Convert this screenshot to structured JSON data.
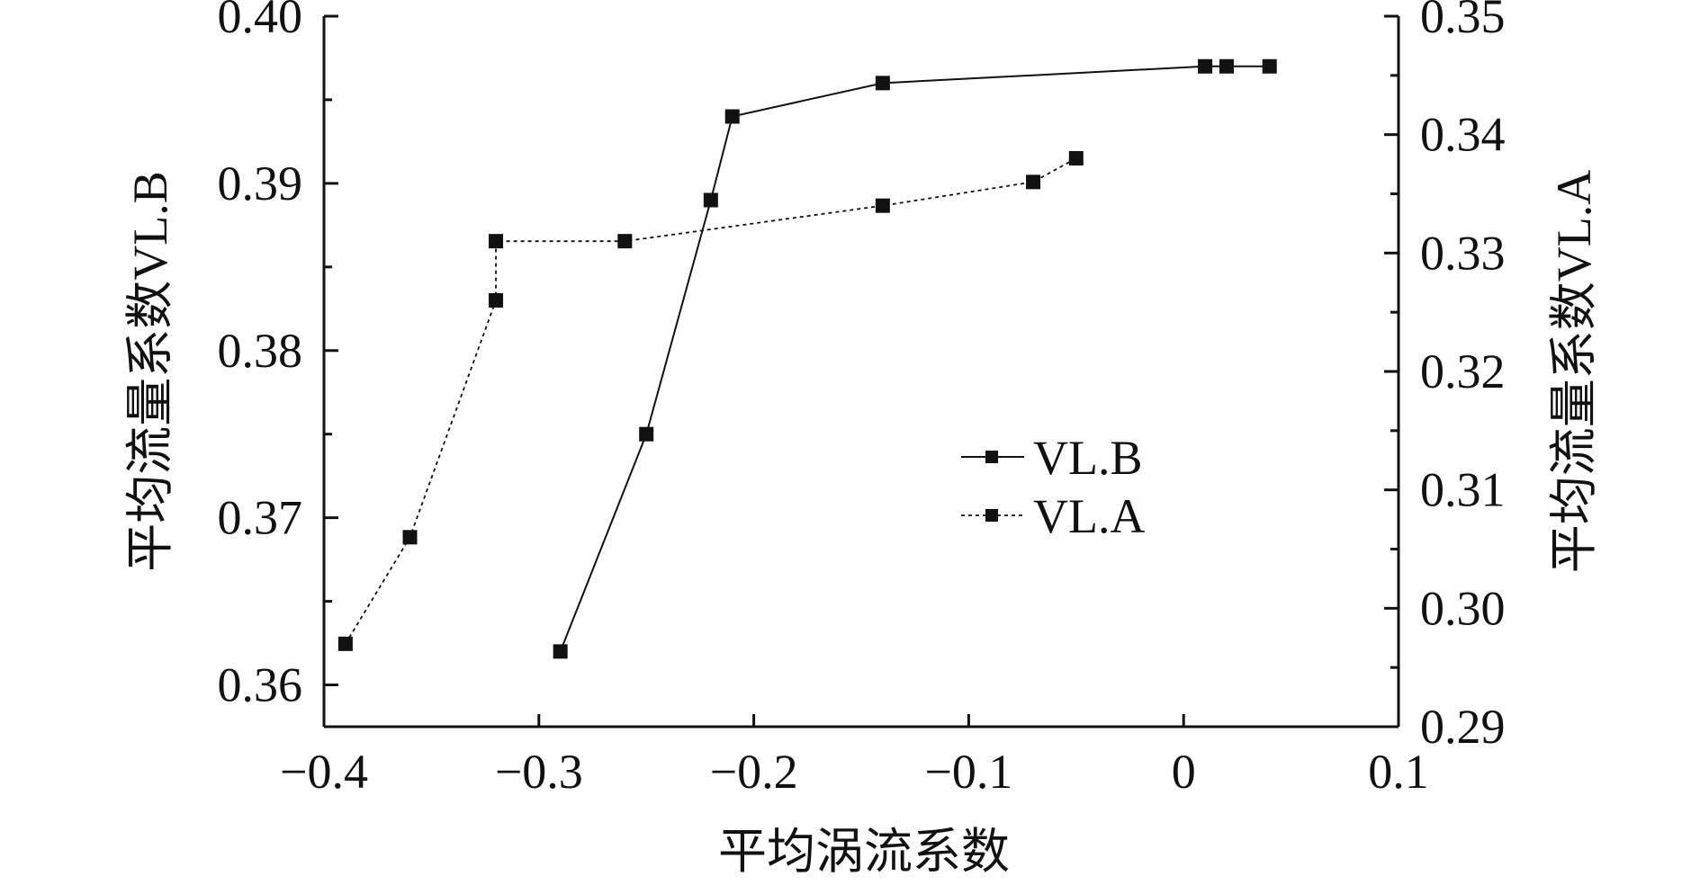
{
  "chart_data": {
    "type": "line",
    "title": "",
    "xlabel": "平均涡流系数",
    "ylabel": "平均流量系数VL.B",
    "y2label": "平均流量系数VL.A",
    "xlim": [
      -0.4,
      0.1
    ],
    "ylim": [
      0.3575,
      0.4
    ],
    "y2lim": [
      0.29,
      0.35
    ],
    "x_ticks": [
      "−0.4",
      "−0.3",
      "−0.2",
      "−0.1",
      "0",
      "0.1"
    ],
    "y_ticks": [
      "0.36",
      "0.37",
      "0.38",
      "0.39",
      "0.40"
    ],
    "y2_ticks": [
      "0.29",
      "0.30",
      "0.31",
      "0.32",
      "0.33",
      "0.34",
      "0.35"
    ],
    "grid": false,
    "legend_position": "center-right",
    "series": [
      {
        "name": "VL.B",
        "axis": "left",
        "line_style": "solid",
        "marker": "square",
        "color": "#111111",
        "x": [
          -0.29,
          -0.25,
          -0.22,
          -0.21,
          -0.14,
          0.01,
          0.02,
          0.04
        ],
        "y": [
          0.362,
          0.375,
          0.389,
          0.394,
          0.396,
          0.397,
          0.397,
          0.397
        ]
      },
      {
        "name": "VL.A",
        "axis": "right",
        "line_style": "dotted",
        "marker": "square",
        "color": "#111111",
        "x": [
          -0.39,
          -0.36,
          -0.32,
          -0.32,
          -0.26,
          -0.14,
          -0.07,
          -0.05
        ],
        "y": [
          0.297,
          0.306,
          0.326,
          0.331,
          0.331,
          0.334,
          0.336,
          0.338
        ]
      }
    ]
  }
}
